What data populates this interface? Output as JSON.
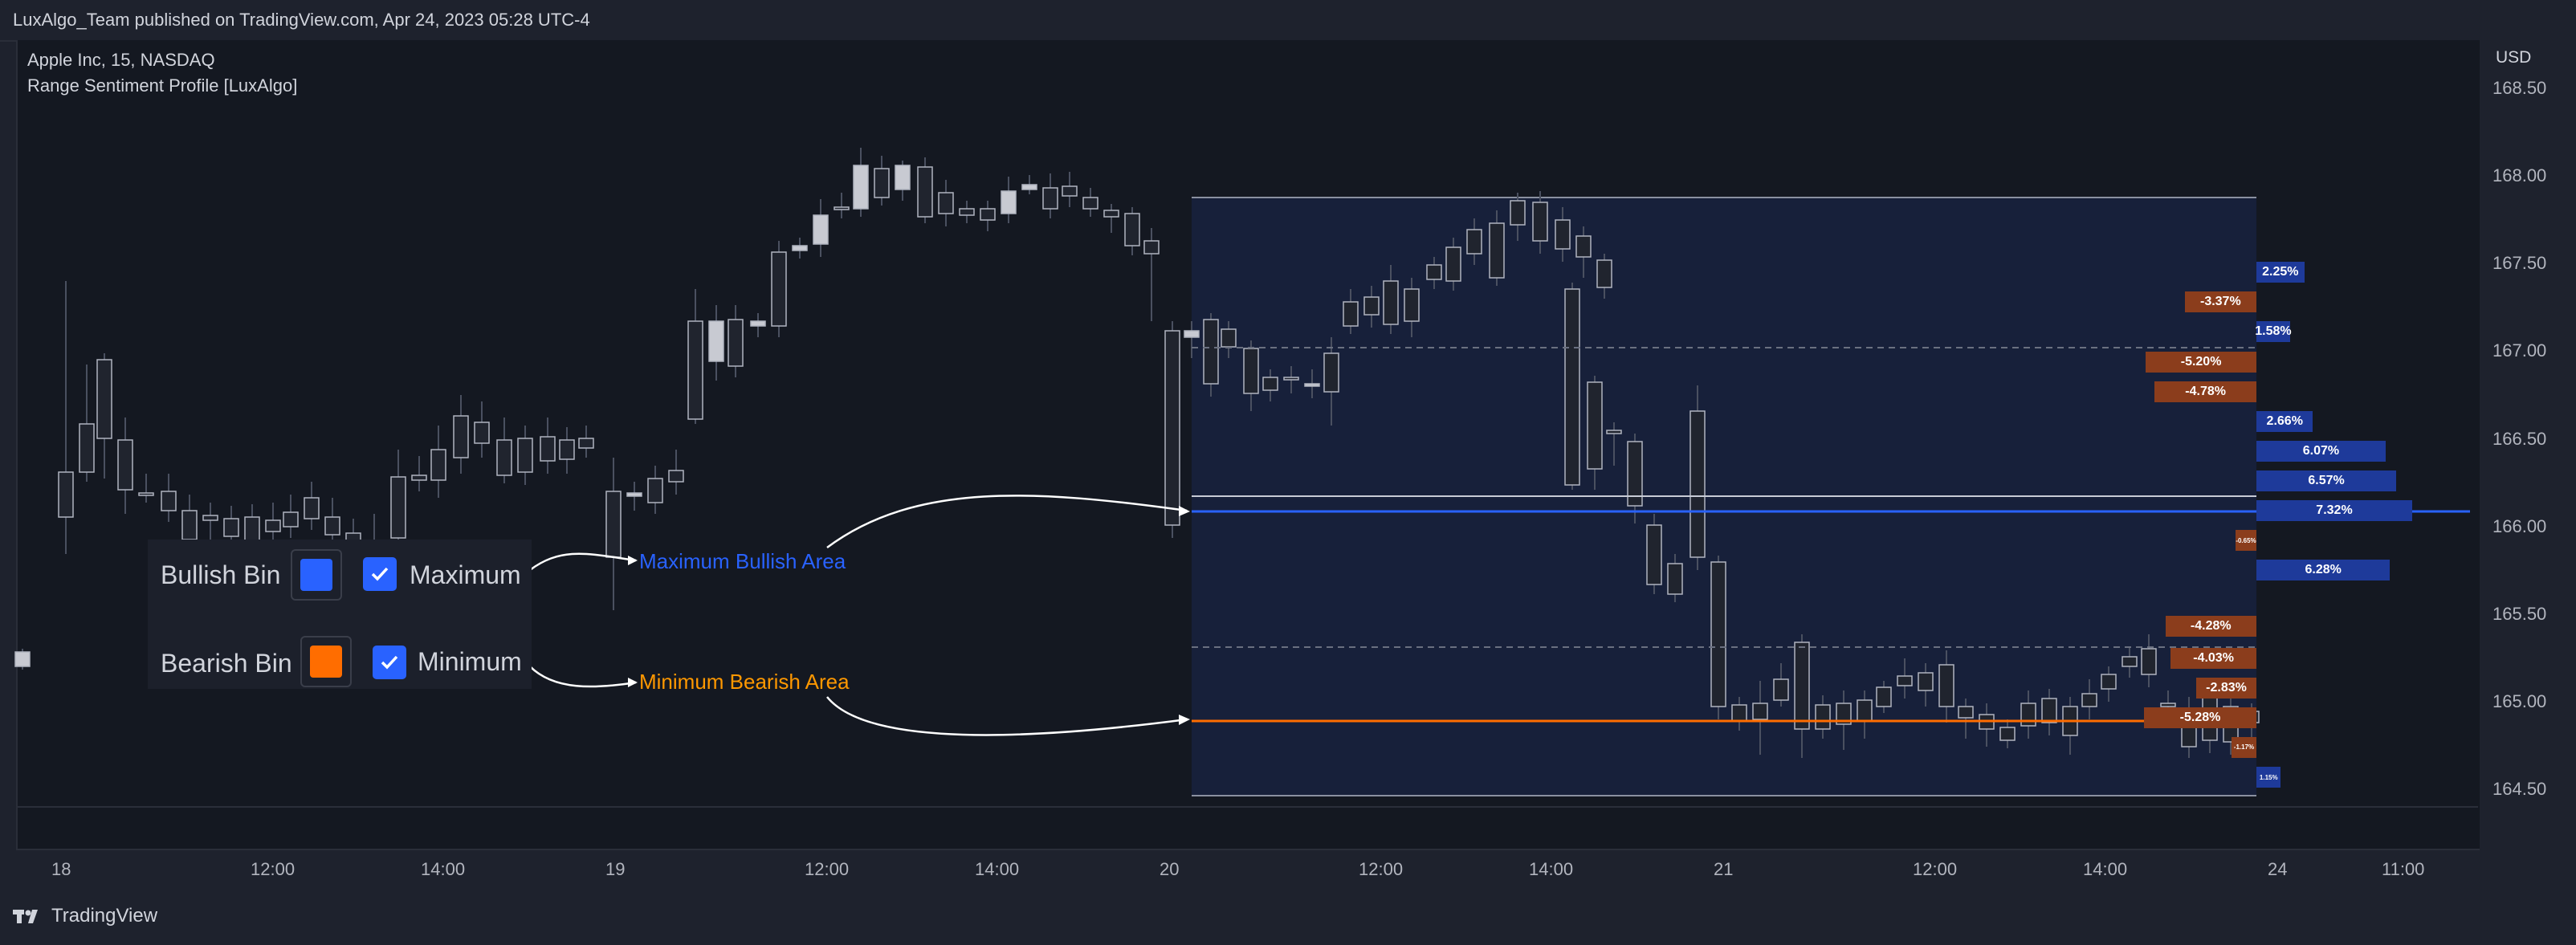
{
  "header": {
    "publisher": "LuxAlgo_Team published on TradingView.com, Apr 24, 2023 05:28 UTC-4"
  },
  "legend": {
    "symbol": "Apple Inc, 15, NASDAQ",
    "indicator": "Range Sentiment Profile [LuxAlgo]"
  },
  "price_axis": {
    "currency": "USD",
    "labels": [
      "168.50",
      "168.00",
      "167.50",
      "167.00",
      "166.50",
      "166.00",
      "165.50",
      "165.00",
      "164.50"
    ]
  },
  "time_axis": {
    "labels": [
      "18",
      "12:00",
      "14:00",
      "19",
      "12:00",
      "14:00",
      "20",
      "12:00",
      "14:00",
      "21",
      "12:00",
      "14:00",
      "24",
      "11:00"
    ]
  },
  "settings": {
    "bullish_label": "Bullish Bin",
    "bearish_label": "Bearish Bin",
    "maximum_label": "Maximum",
    "minimum_label": "Minimum",
    "bullish_color": "#2962ff",
    "bearish_color": "#ff6d00",
    "maximum_checked": true,
    "minimum_checked": true
  },
  "annotations": {
    "max_bullish": "Maximum Bullish Area",
    "min_bearish": "Minimum Bearish Area",
    "max_bullish_color": "#2962ff",
    "min_bearish_color": "#ff9800"
  },
  "profile": {
    "bullish_color": "#1e3a9a",
    "bearish_color": "#8b3d1c",
    "bins": [
      {
        "price": 167.45,
        "value": "2.25%",
        "side": "bull",
        "pct": 2.25
      },
      {
        "price": 167.28,
        "value": "-3.37%",
        "side": "bear",
        "pct": 3.37
      },
      {
        "price": 167.11,
        "value": "1.58%",
        "side": "bull",
        "pct": 1.58
      },
      {
        "price": 166.94,
        "value": "-5.20%",
        "side": "bear",
        "pct": 5.2
      },
      {
        "price": 166.77,
        "value": "-4.78%",
        "side": "bear",
        "pct": 4.78
      },
      {
        "price": 166.6,
        "value": "2.66%",
        "side": "bull",
        "pct": 2.66
      },
      {
        "price": 166.43,
        "value": "6.07%",
        "side": "bull",
        "pct": 6.07
      },
      {
        "price": 166.26,
        "value": "6.57%",
        "side": "bull",
        "pct": 6.57
      },
      {
        "price": 166.09,
        "value": "7.32%",
        "side": "bull",
        "pct": 7.32
      },
      {
        "price": 165.92,
        "value": "-0.65%",
        "side": "bear",
        "pct": 0.65
      },
      {
        "price": 165.75,
        "value": "6.28%",
        "side": "bull",
        "pct": 6.28
      },
      {
        "price": 165.43,
        "value": "-4.28%",
        "side": "bear",
        "pct": 4.28
      },
      {
        "price": 165.25,
        "value": "-4.03%",
        "side": "bear",
        "pct": 4.03
      },
      {
        "price": 165.08,
        "value": "-2.83%",
        "side": "bear",
        "pct": 2.83
      },
      {
        "price": 164.91,
        "value": "-5.28%",
        "side": "bear",
        "pct": 5.28
      },
      {
        "price": 164.74,
        "value": "-1.17%",
        "side": "bear",
        "pct": 1.17
      },
      {
        "price": 164.57,
        "value": "1.15%",
        "side": "bull",
        "pct": 1.15
      }
    ]
  },
  "footer": {
    "brand": "TradingView",
    "logo_icon": "tradingview-logo-icon"
  }
}
